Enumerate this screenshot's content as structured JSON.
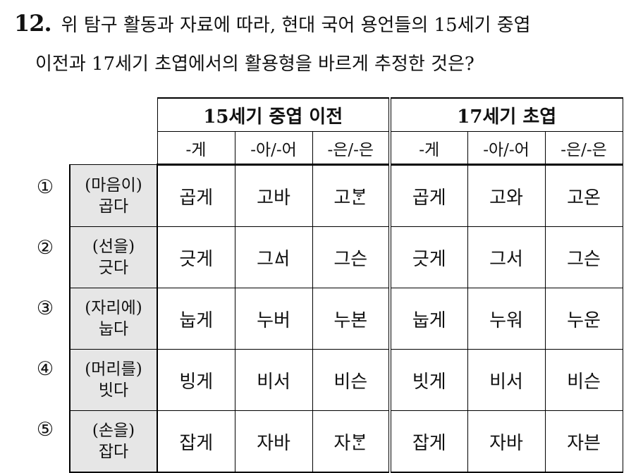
{
  "question": {
    "number": "12.",
    "line1": "위 탐구 활동과 자료에 따라, 현대 국어 용언들의 15세기 중엽",
    "line2": "이전과 17세기 초엽에서의 활용형을 바르게 추정한 것은?"
  },
  "table": {
    "period_early": "15세기 중엽 이전",
    "period_late": "17세기 초엽",
    "endings": [
      "-게",
      "-아/-어",
      "-은/-은"
    ],
    "rows": [
      {
        "marker": "①",
        "context": "(마음이)",
        "verb": "곱다",
        "early": [
          "곱게",
          "고바",
          "고ᄫᆞᆫ"
        ],
        "late": [
          "곱게",
          "고와",
          "고온"
        ]
      },
      {
        "marker": "②",
        "context": "(선을)",
        "verb": "긋다",
        "early": [
          "긋게",
          "그ᅀᅥ",
          "그슨"
        ],
        "late": [
          "긋게",
          "그서",
          "그슨"
        ]
      },
      {
        "marker": "③",
        "context": "(자리에)",
        "verb": "눕다",
        "early": [
          "눕게",
          "누버",
          "누본"
        ],
        "late": [
          "눕게",
          "누워",
          "누운"
        ]
      },
      {
        "marker": "④",
        "context": "(머리를)",
        "verb": "빗다",
        "early": [
          "빙게",
          "비서",
          "비슨"
        ],
        "late": [
          "빗게",
          "비서",
          "비슨"
        ]
      },
      {
        "marker": "⑤",
        "context": "(손을)",
        "verb": "잡다",
        "early": [
          "잡게",
          "자바",
          "자ᄫᆞᆫ"
        ],
        "late": [
          "잡게",
          "자바",
          "자븐"
        ]
      }
    ]
  }
}
